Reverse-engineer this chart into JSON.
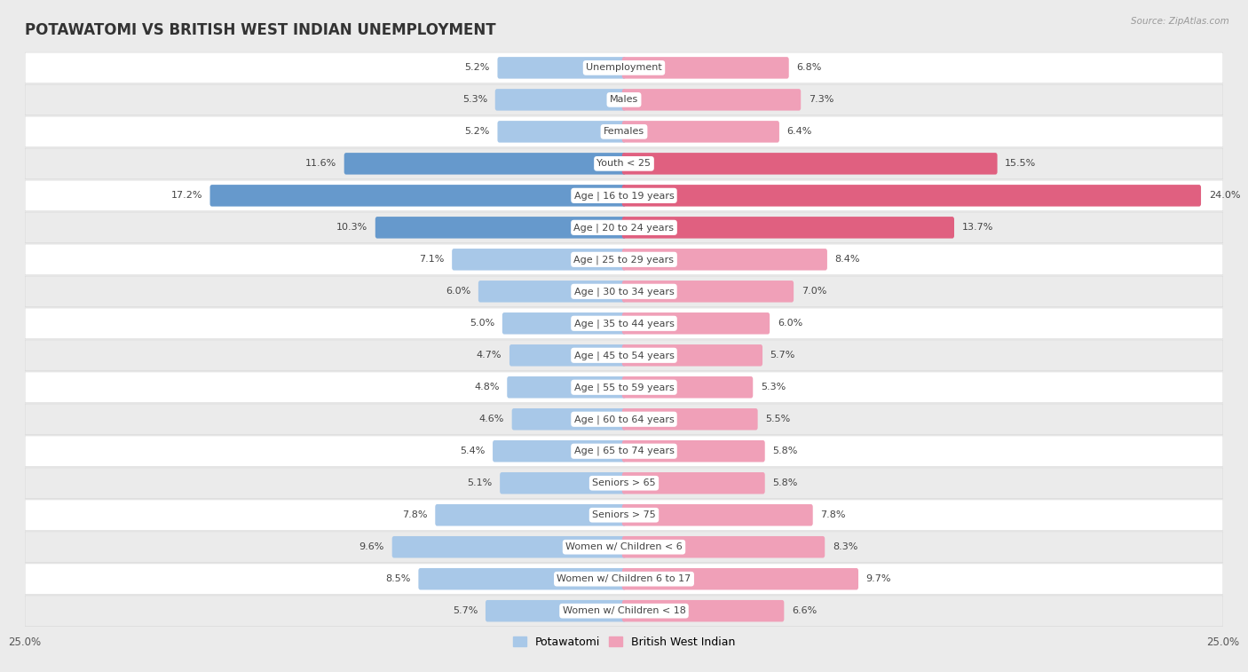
{
  "title": "POTAWATOMI VS BRITISH WEST INDIAN UNEMPLOYMENT",
  "source": "Source: ZipAtlas.com",
  "categories": [
    "Unemployment",
    "Males",
    "Females",
    "Youth < 25",
    "Age | 16 to 19 years",
    "Age | 20 to 24 years",
    "Age | 25 to 29 years",
    "Age | 30 to 34 years",
    "Age | 35 to 44 years",
    "Age | 45 to 54 years",
    "Age | 55 to 59 years",
    "Age | 60 to 64 years",
    "Age | 65 to 74 years",
    "Seniors > 65",
    "Seniors > 75",
    "Women w/ Children < 6",
    "Women w/ Children 6 to 17",
    "Women w/ Children < 18"
  ],
  "potawatomi": [
    5.2,
    5.3,
    5.2,
    11.6,
    17.2,
    10.3,
    7.1,
    6.0,
    5.0,
    4.7,
    4.8,
    4.6,
    5.4,
    5.1,
    7.8,
    9.6,
    8.5,
    5.7
  ],
  "british_west_indian": [
    6.8,
    7.3,
    6.4,
    15.5,
    24.0,
    13.7,
    8.4,
    7.0,
    6.0,
    5.7,
    5.3,
    5.5,
    5.8,
    5.8,
    7.8,
    8.3,
    9.7,
    6.6
  ],
  "potawatomi_color": "#a8c8e8",
  "british_west_indian_color": "#f0a0b8",
  "potawatomi_highlight_color": "#6699cc",
  "british_west_indian_highlight_color": "#e06080",
  "row_color_odd": "#f5f5f5",
  "row_color_even": "#e8e8e8",
  "background_color": "#ebebeb",
  "x_max": 25.0,
  "bar_height": 0.52,
  "title_fontsize": 12,
  "label_fontsize": 8,
  "value_fontsize": 8,
  "legend_fontsize": 9,
  "highlight_rows": [
    3,
    4,
    5
  ]
}
